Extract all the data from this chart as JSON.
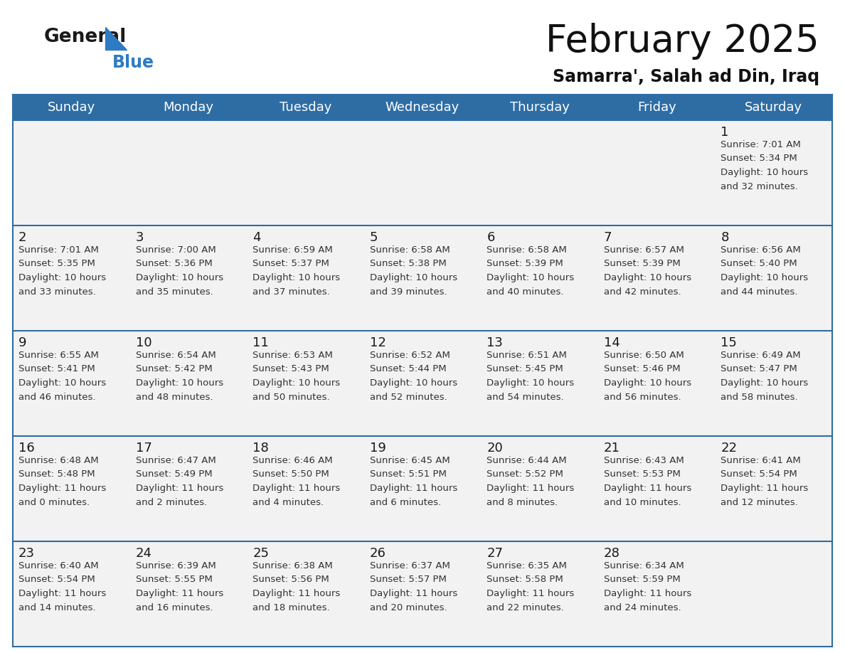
{
  "title": "February 2025",
  "subtitle": "Samarra', Salah ad Din, Iraq",
  "days_of_week": [
    "Sunday",
    "Monday",
    "Tuesday",
    "Wednesday",
    "Thursday",
    "Friday",
    "Saturday"
  ],
  "header_bg": "#2E6DA4",
  "header_text": "#FFFFFF",
  "cell_bg_light": "#F2F2F2",
  "line_color": "#2E6DA4",
  "text_color": "#333333",
  "day_num_color": "#1a1a1a",
  "logo_general_color": "#1a1a1a",
  "logo_blue_color": "#2E7BC4",
  "calendar_data": [
    [
      {
        "day": null,
        "info": null
      },
      {
        "day": null,
        "info": null
      },
      {
        "day": null,
        "info": null
      },
      {
        "day": null,
        "info": null
      },
      {
        "day": null,
        "info": null
      },
      {
        "day": null,
        "info": null
      },
      {
        "day": 1,
        "info": "Sunrise: 7:01 AM\nSunset: 5:34 PM\nDaylight: 10 hours\nand 32 minutes."
      }
    ],
    [
      {
        "day": 2,
        "info": "Sunrise: 7:01 AM\nSunset: 5:35 PM\nDaylight: 10 hours\nand 33 minutes."
      },
      {
        "day": 3,
        "info": "Sunrise: 7:00 AM\nSunset: 5:36 PM\nDaylight: 10 hours\nand 35 minutes."
      },
      {
        "day": 4,
        "info": "Sunrise: 6:59 AM\nSunset: 5:37 PM\nDaylight: 10 hours\nand 37 minutes."
      },
      {
        "day": 5,
        "info": "Sunrise: 6:58 AM\nSunset: 5:38 PM\nDaylight: 10 hours\nand 39 minutes."
      },
      {
        "day": 6,
        "info": "Sunrise: 6:58 AM\nSunset: 5:39 PM\nDaylight: 10 hours\nand 40 minutes."
      },
      {
        "day": 7,
        "info": "Sunrise: 6:57 AM\nSunset: 5:39 PM\nDaylight: 10 hours\nand 42 minutes."
      },
      {
        "day": 8,
        "info": "Sunrise: 6:56 AM\nSunset: 5:40 PM\nDaylight: 10 hours\nand 44 minutes."
      }
    ],
    [
      {
        "day": 9,
        "info": "Sunrise: 6:55 AM\nSunset: 5:41 PM\nDaylight: 10 hours\nand 46 minutes."
      },
      {
        "day": 10,
        "info": "Sunrise: 6:54 AM\nSunset: 5:42 PM\nDaylight: 10 hours\nand 48 minutes."
      },
      {
        "day": 11,
        "info": "Sunrise: 6:53 AM\nSunset: 5:43 PM\nDaylight: 10 hours\nand 50 minutes."
      },
      {
        "day": 12,
        "info": "Sunrise: 6:52 AM\nSunset: 5:44 PM\nDaylight: 10 hours\nand 52 minutes."
      },
      {
        "day": 13,
        "info": "Sunrise: 6:51 AM\nSunset: 5:45 PM\nDaylight: 10 hours\nand 54 minutes."
      },
      {
        "day": 14,
        "info": "Sunrise: 6:50 AM\nSunset: 5:46 PM\nDaylight: 10 hours\nand 56 minutes."
      },
      {
        "day": 15,
        "info": "Sunrise: 6:49 AM\nSunset: 5:47 PM\nDaylight: 10 hours\nand 58 minutes."
      }
    ],
    [
      {
        "day": 16,
        "info": "Sunrise: 6:48 AM\nSunset: 5:48 PM\nDaylight: 11 hours\nand 0 minutes."
      },
      {
        "day": 17,
        "info": "Sunrise: 6:47 AM\nSunset: 5:49 PM\nDaylight: 11 hours\nand 2 minutes."
      },
      {
        "day": 18,
        "info": "Sunrise: 6:46 AM\nSunset: 5:50 PM\nDaylight: 11 hours\nand 4 minutes."
      },
      {
        "day": 19,
        "info": "Sunrise: 6:45 AM\nSunset: 5:51 PM\nDaylight: 11 hours\nand 6 minutes."
      },
      {
        "day": 20,
        "info": "Sunrise: 6:44 AM\nSunset: 5:52 PM\nDaylight: 11 hours\nand 8 minutes."
      },
      {
        "day": 21,
        "info": "Sunrise: 6:43 AM\nSunset: 5:53 PM\nDaylight: 11 hours\nand 10 minutes."
      },
      {
        "day": 22,
        "info": "Sunrise: 6:41 AM\nSunset: 5:54 PM\nDaylight: 11 hours\nand 12 minutes."
      }
    ],
    [
      {
        "day": 23,
        "info": "Sunrise: 6:40 AM\nSunset: 5:54 PM\nDaylight: 11 hours\nand 14 minutes."
      },
      {
        "day": 24,
        "info": "Sunrise: 6:39 AM\nSunset: 5:55 PM\nDaylight: 11 hours\nand 16 minutes."
      },
      {
        "day": 25,
        "info": "Sunrise: 6:38 AM\nSunset: 5:56 PM\nDaylight: 11 hours\nand 18 minutes."
      },
      {
        "day": 26,
        "info": "Sunrise: 6:37 AM\nSunset: 5:57 PM\nDaylight: 11 hours\nand 20 minutes."
      },
      {
        "day": 27,
        "info": "Sunrise: 6:35 AM\nSunset: 5:58 PM\nDaylight: 11 hours\nand 22 minutes."
      },
      {
        "day": 28,
        "info": "Sunrise: 6:34 AM\nSunset: 5:59 PM\nDaylight: 11 hours\nand 24 minutes."
      },
      {
        "day": null,
        "info": null
      }
    ]
  ]
}
